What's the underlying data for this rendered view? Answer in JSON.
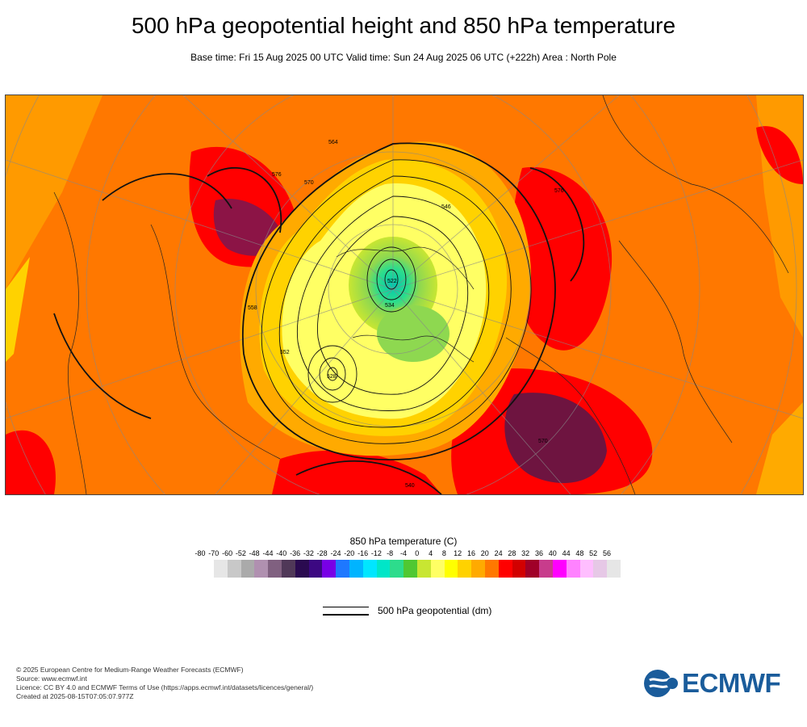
{
  "title": "500 hPa geopotential height and 850 hPa temperature",
  "subtitle": "Base time: Fri 15 Aug 2025 00 UTC Valid time: Sun 24 Aug 2025 06 UTC (+222h) Area : North Pole",
  "legend": {
    "title": "850 hPa temperature (C)",
    "ticks": [
      "-80",
      "-70",
      "-60",
      "-52",
      "-48",
      "-44",
      "-40",
      "-36",
      "-32",
      "-28",
      "-24",
      "-20",
      "-16",
      "-12",
      "-8",
      "-4",
      "0",
      "4",
      "8",
      "12",
      "16",
      "20",
      "24",
      "28",
      "32",
      "36",
      "40",
      "44",
      "48",
      "52",
      "56"
    ],
    "colors": [
      "#e6e6e6",
      "#c8c8c8",
      "#aaaaaa",
      "#b090b0",
      "#806080",
      "#503858",
      "#2a0a50",
      "#3c0882",
      "#7800e6",
      "#1e78ff",
      "#00b4ff",
      "#00e6ff",
      "#00e6c8",
      "#2ddc8c",
      "#50c832",
      "#c8e632",
      "#ffff64",
      "#ffff00",
      "#ffd200",
      "#ffaa00",
      "#ff7800",
      "#ff0000",
      "#d20000",
      "#a00028",
      "#c83c8c",
      "#ff00ff",
      "#ff82ff",
      "#ffbeff",
      "#e6c8e6",
      "#e6e6e6"
    ]
  },
  "contour_legend": "500 hPa geopotential (dm)",
  "credits": [
    "© 2025 European Centre for Medium-Range Weather Forecasts (ECMWF)",
    "Source: www.ecmwf.int",
    "Licence: CC BY 4.0 and ECMWF Terms of Use (https://apps.ecmwf.int/datasets/licences/general/)",
    "Created at 2025-08-15T07:05:07.977Z"
  ],
  "logo_text": "ECMWF",
  "map_labels": [
    "576",
    "570",
    "564",
    "558",
    "552",
    "546",
    "540",
    "534",
    "528",
    "522"
  ]
}
